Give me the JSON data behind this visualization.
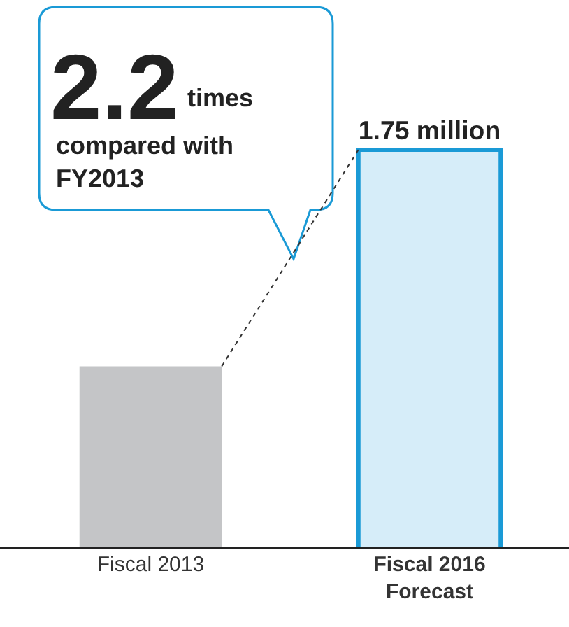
{
  "chart_data": {
    "type": "bar",
    "categories": [
      "Fiscal 2013",
      "Fiscal 2016 Forecast"
    ],
    "values": [
      0.8,
      1.75
    ],
    "colors": [
      "#c4c5c7",
      "#d6edf9"
    ],
    "value_labels": [
      null,
      "1.75 million"
    ],
    "annotations": [
      "2.2",
      "times",
      "compared with\nFY2013"
    ]
  }
}
